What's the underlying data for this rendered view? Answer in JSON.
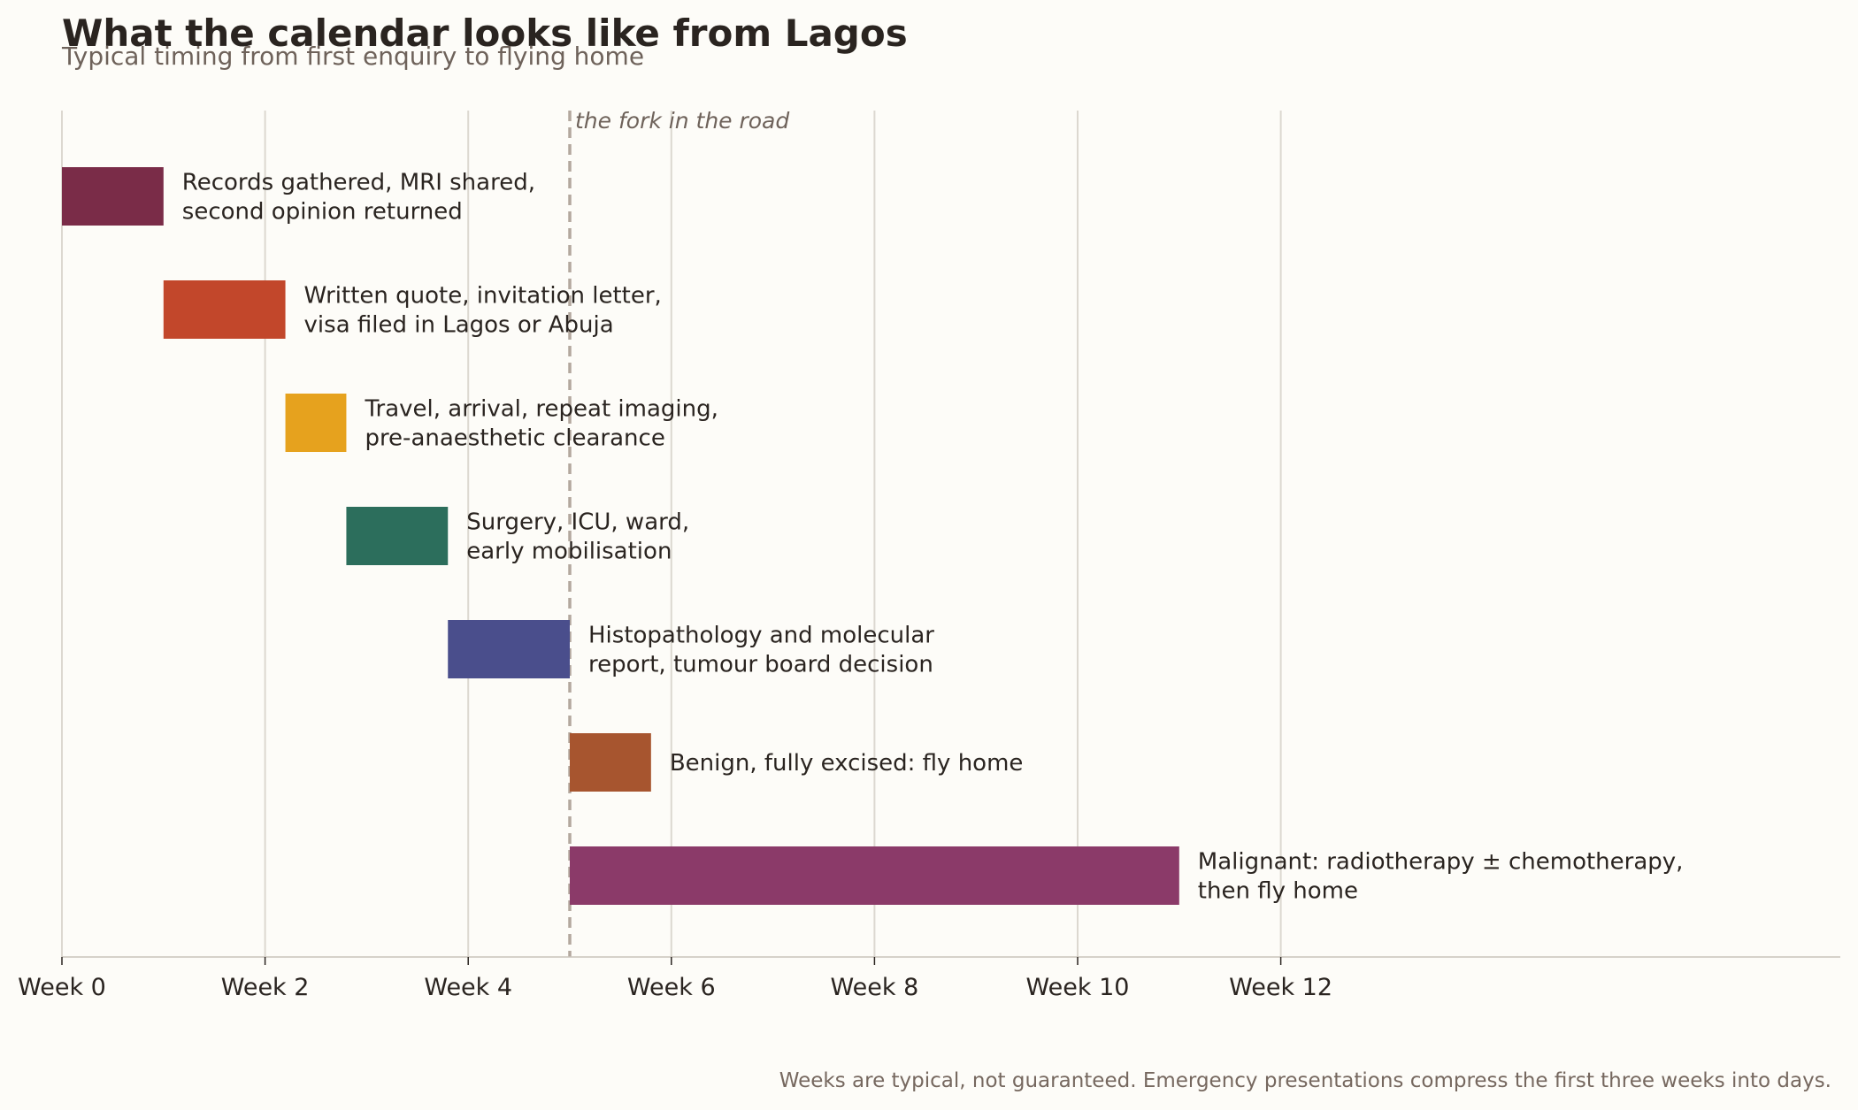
{
  "chart_data": {
    "type": "bar",
    "orientation": "horizontal",
    "title": "What the calendar looks like from Lagos",
    "subtitle": "Typical timing from first enquiry to flying home",
    "xlabel": "",
    "ylabel": "",
    "xlim": [
      0,
      17.5
    ],
    "x_ticks": [
      0,
      2,
      4,
      6,
      8,
      10,
      12
    ],
    "x_tick_labels": [
      "Week 0",
      "Week 2",
      "Week 4",
      "Week 6",
      "Week 8",
      "Week 10",
      "Week 12"
    ],
    "grid": "vertical",
    "legend": "none",
    "tasks": [
      {
        "label_lines": [
          "Records gathered, MRI shared,",
          "second opinion returned"
        ],
        "start": 0,
        "end": 1.0,
        "color": "#7a2c48"
      },
      {
        "label_lines": [
          "Written quote, invitation letter,",
          "visa filed in Lagos or Abuja"
        ],
        "start": 1.0,
        "end": 2.2,
        "color": "#c2472b"
      },
      {
        "label_lines": [
          "Travel, arrival, repeat imaging,",
          "pre-anaesthetic clearance"
        ],
        "start": 2.2,
        "end": 2.8,
        "color": "#e6a21e"
      },
      {
        "label_lines": [
          "Surgery, ICU, ward,",
          "early mobilisation"
        ],
        "start": 2.8,
        "end": 3.8,
        "color": "#2c6e5c"
      },
      {
        "label_lines": [
          "Histopathology and molecular",
          "report, tumour board decision"
        ],
        "start": 3.8,
        "end": 5.0,
        "color": "#4a4e8c"
      },
      {
        "label_lines": [
          "Benign, fully excised: fly home"
        ],
        "start": 5.0,
        "end": 5.8,
        "color": "#a7552f"
      },
      {
        "label_lines": [
          "Malignant: radiotherapy ± chemotherapy,",
          "then fly home"
        ],
        "start": 5.0,
        "end": 11.0,
        "color": "#8b3a69"
      }
    ],
    "annotations": [
      {
        "x": 5.0,
        "text": "the fork in the road",
        "line_style": "dashed",
        "color": "#b3a89e"
      }
    ],
    "footnote": "Weeks are typical, not guaranteed. Emergency presentations compress the first three weeks into days."
  }
}
